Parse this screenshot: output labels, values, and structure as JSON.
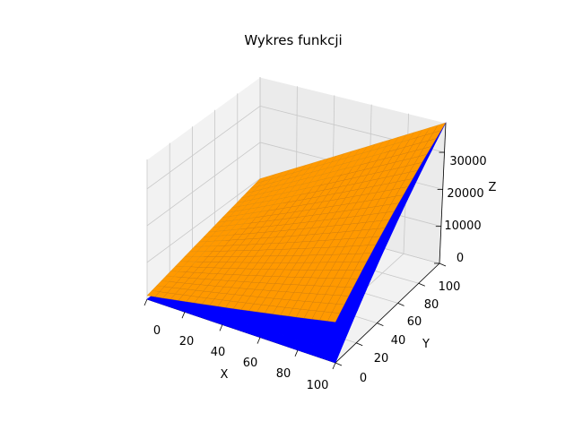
{
  "chart_data": {
    "type": "surface3d",
    "title": "Wykres funkcji",
    "xlabel": "X",
    "ylabel": "Y",
    "zlabel": "Z",
    "xlim": [
      0,
      100
    ],
    "ylim": [
      0,
      100
    ],
    "zlim": [
      0,
      38000
    ],
    "x_ticks": [
      "0",
      "20",
      "40",
      "60",
      "80",
      "100"
    ],
    "y_ticks": [
      "0",
      "20",
      "40",
      "60",
      "80",
      "100"
    ],
    "z_ticks": [
      "0",
      "10000",
      "20000",
      "30000"
    ],
    "grid": true,
    "series": [
      {
        "color": "#0000ff",
        "corners": [
          {
            "x": 0,
            "y": 0,
            "z": 0
          },
          {
            "x": 100,
            "y": 0,
            "z": 0
          },
          {
            "x": 0,
            "y": 100,
            "z": 0
          },
          {
            "x": 100,
            "y": 100,
            "z": 38000
          }
        ]
      },
      {
        "color": "#ff9900",
        "corners": [
          {
            "x": 0,
            "y": 0,
            "z": 1000
          },
          {
            "x": 100,
            "y": 0,
            "z": 10000
          },
          {
            "x": 0,
            "y": 100,
            "z": 10000
          },
          {
            "x": 100,
            "y": 100,
            "z": 38000
          }
        ]
      }
    ]
  }
}
